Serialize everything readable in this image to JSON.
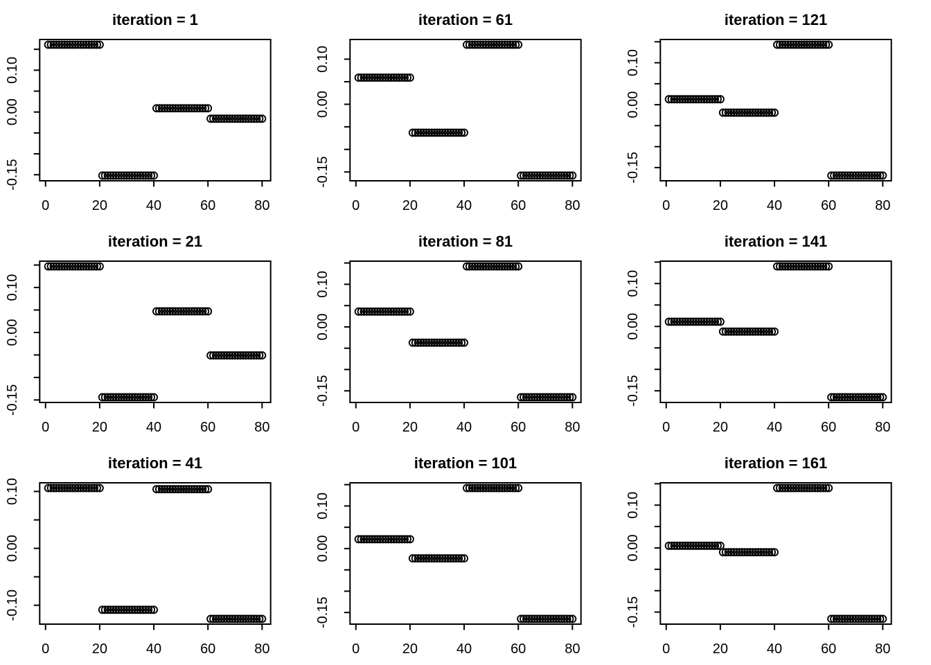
{
  "figure": {
    "background_color": "#ffffff",
    "foreground_color": "#000000",
    "grid": {
      "rows": 3,
      "cols": 3
    },
    "panel_titles": [
      "iteration = 1",
      "iteration = 61",
      "iteration = 121",
      "iteration = 21",
      "iteration = 81",
      "iteration = 141",
      "iteration = 41",
      "iteration = 101",
      "iteration = 161"
    ]
  },
  "chart_data": [
    {
      "type": "scatter",
      "title": "iteration = 1",
      "iteration": 1,
      "marker": "open-circle",
      "points_per_group": 20,
      "groups": [
        {
          "x_range": [
            1,
            20
          ],
          "level": 0.161
        },
        {
          "x_range": [
            21,
            40
          ],
          "level": -0.152
        },
        {
          "x_range": [
            41,
            60
          ],
          "level": 0.009
        },
        {
          "x_range": [
            61,
            80
          ],
          "level": -0.016
        }
      ],
      "xlim": [
        -2.16,
        83.16
      ],
      "ylim": [
        -0.1645,
        0.1735
      ],
      "xticks": [
        0,
        20,
        40,
        60,
        80
      ],
      "xtick_labels": [
        "0",
        "20",
        "40",
        "60",
        "80"
      ],
      "yticks": [
        0.15,
        0.1,
        0.05,
        0,
        -0.05,
        -0.1,
        -0.15
      ],
      "ytick_labels": [
        {
          "v": 0.1,
          "t": "0.10"
        },
        {
          "v": 0,
          "t": "0.00"
        },
        {
          "v": -0.15,
          "t": "-0.15"
        }
      ],
      "grid_lines": false,
      "legend": null
    },
    {
      "type": "scatter",
      "title": "iteration = 61",
      "iteration": 61,
      "marker": "open-circle",
      "points_per_group": 20,
      "groups": [
        {
          "x_range": [
            1,
            20
          ],
          "level": 0.059
        },
        {
          "x_range": [
            21,
            40
          ],
          "level": -0.063
        },
        {
          "x_range": [
            41,
            60
          ],
          "level": 0.132
        },
        {
          "x_range": [
            61,
            80
          ],
          "level": -0.158
        }
      ],
      "xlim": [
        -2.16,
        83.16
      ],
      "ylim": [
        -0.1696,
        0.1436
      ],
      "xticks": [
        0,
        20,
        40,
        60,
        80
      ],
      "xtick_labels": [
        "0",
        "20",
        "40",
        "60",
        "80"
      ],
      "yticks": [
        0.1,
        0.05,
        0,
        -0.05,
        -0.1,
        -0.15
      ],
      "ytick_labels": [
        {
          "v": 0.1,
          "t": "0.10"
        },
        {
          "v": 0,
          "t": "0.00"
        },
        {
          "v": -0.15,
          "t": "-0.15"
        }
      ],
      "grid_lines": false,
      "legend": null
    },
    {
      "type": "scatter",
      "title": "iteration = 121",
      "iteration": 121,
      "marker": "open-circle",
      "points_per_group": 20,
      "groups": [
        {
          "x_range": [
            1,
            20
          ],
          "level": 0.013
        },
        {
          "x_range": [
            21,
            40
          ],
          "level": -0.019
        },
        {
          "x_range": [
            41,
            60
          ],
          "level": 0.143
        },
        {
          "x_range": [
            61,
            80
          ],
          "level": -0.169
        }
      ],
      "xlim": [
        -2.16,
        83.16
      ],
      "ylim": [
        -0.1815,
        0.1555
      ],
      "xticks": [
        0,
        20,
        40,
        60,
        80
      ],
      "xtick_labels": [
        "0",
        "20",
        "40",
        "60",
        "80"
      ],
      "yticks": [
        0.15,
        0.1,
        0.05,
        0,
        -0.05,
        -0.1,
        -0.15
      ],
      "ytick_labels": [
        {
          "v": 0.1,
          "t": "0.10"
        },
        {
          "v": 0,
          "t": "0.00"
        },
        {
          "v": -0.15,
          "t": "-0.15"
        }
      ],
      "grid_lines": false,
      "legend": null
    },
    {
      "type": "scatter",
      "title": "iteration = 21",
      "iteration": 21,
      "marker": "open-circle",
      "points_per_group": 20,
      "groups": [
        {
          "x_range": [
            1,
            20
          ],
          "level": 0.147
        },
        {
          "x_range": [
            21,
            40
          ],
          "level": -0.144
        },
        {
          "x_range": [
            41,
            60
          ],
          "level": 0.047
        },
        {
          "x_range": [
            61,
            80
          ],
          "level": -0.051
        }
      ],
      "xlim": [
        -2.16,
        83.16
      ],
      "ylim": [
        -0.1556,
        0.1586
      ],
      "xticks": [
        0,
        20,
        40,
        60,
        80
      ],
      "xtick_labels": [
        "0",
        "20",
        "40",
        "60",
        "80"
      ],
      "yticks": [
        0.15,
        0.1,
        0.05,
        0,
        -0.05,
        -0.1,
        -0.15
      ],
      "ytick_labels": [
        {
          "v": 0.1,
          "t": "0.10"
        },
        {
          "v": 0,
          "t": "0.00"
        },
        {
          "v": -0.15,
          "t": "-0.15"
        }
      ],
      "grid_lines": false,
      "legend": null
    },
    {
      "type": "scatter",
      "title": "iteration = 81",
      "iteration": 81,
      "marker": "open-circle",
      "points_per_group": 20,
      "groups": [
        {
          "x_range": [
            1,
            20
          ],
          "level": 0.036
        },
        {
          "x_range": [
            21,
            40
          ],
          "level": -0.037
        },
        {
          "x_range": [
            41,
            60
          ],
          "level": 0.142
        },
        {
          "x_range": [
            61,
            80
          ],
          "level": -0.165
        }
      ],
      "xlim": [
        -2.16,
        83.16
      ],
      "ylim": [
        -0.1773,
        0.1543
      ],
      "xticks": [
        0,
        20,
        40,
        60,
        80
      ],
      "xtick_labels": [
        "0",
        "20",
        "40",
        "60",
        "80"
      ],
      "yticks": [
        0.15,
        0.1,
        0.05,
        0,
        -0.05,
        -0.1,
        -0.15
      ],
      "ytick_labels": [
        {
          "v": 0.1,
          "t": "0.10"
        },
        {
          "v": 0,
          "t": "0.00"
        },
        {
          "v": -0.15,
          "t": "-0.15"
        }
      ],
      "grid_lines": false,
      "legend": null
    },
    {
      "type": "scatter",
      "title": "iteration = 141",
      "iteration": 141,
      "marker": "open-circle",
      "points_per_group": 20,
      "groups": [
        {
          "x_range": [
            1,
            20
          ],
          "level": 0.011
        },
        {
          "x_range": [
            21,
            40
          ],
          "level": -0.012
        },
        {
          "x_range": [
            41,
            60
          ],
          "level": 0.14
        },
        {
          "x_range": [
            61,
            80
          ],
          "level": -0.165
        }
      ],
      "xlim": [
        -2.16,
        83.16
      ],
      "ylim": [
        -0.1772,
        0.1522
      ],
      "xticks": [
        0,
        20,
        40,
        60,
        80
      ],
      "xtick_labels": [
        "0",
        "20",
        "40",
        "60",
        "80"
      ],
      "yticks": [
        0.15,
        0.1,
        0.05,
        0,
        -0.05,
        -0.1,
        -0.15
      ],
      "ytick_labels": [
        {
          "v": 0.1,
          "t": "0.10"
        },
        {
          "v": 0,
          "t": "0.00"
        },
        {
          "v": -0.15,
          "t": "-0.15"
        }
      ],
      "grid_lines": false,
      "legend": null
    },
    {
      "type": "scatter",
      "title": "iteration = 41",
      "iteration": 41,
      "marker": "open-circle",
      "points_per_group": 20,
      "groups": [
        {
          "x_range": [
            1,
            20
          ],
          "level": 0.106
        },
        {
          "x_range": [
            21,
            40
          ],
          "level": -0.108
        },
        {
          "x_range": [
            41,
            60
          ],
          "level": 0.104
        },
        {
          "x_range": [
            61,
            80
          ],
          "level": -0.124
        }
      ],
      "xlim": [
        -2.16,
        83.16
      ],
      "ylim": [
        -0.1332,
        0.1152
      ],
      "xticks": [
        0,
        20,
        40,
        60,
        80
      ],
      "xtick_labels": [
        "0",
        "20",
        "40",
        "60",
        "80"
      ],
      "yticks": [
        0.1,
        0.05,
        0,
        -0.05,
        -0.1
      ],
      "ytick_labels": [
        {
          "v": 0.1,
          "t": "0.10"
        },
        {
          "v": 0,
          "t": "0.00"
        },
        {
          "v": -0.1,
          "t": "-0.10"
        }
      ],
      "grid_lines": false,
      "legend": null
    },
    {
      "type": "scatter",
      "title": "iteration = 101",
      "iteration": 101,
      "marker": "open-circle",
      "points_per_group": 20,
      "groups": [
        {
          "x_range": [
            1,
            20
          ],
          "level": 0.022
        },
        {
          "x_range": [
            21,
            40
          ],
          "level": -0.023
        },
        {
          "x_range": [
            41,
            60
          ],
          "level": 0.142
        },
        {
          "x_range": [
            61,
            80
          ],
          "level": -0.165
        }
      ],
      "xlim": [
        -2.16,
        83.16
      ],
      "ylim": [
        -0.1773,
        0.1543
      ],
      "xticks": [
        0,
        20,
        40,
        60,
        80
      ],
      "xtick_labels": [
        "0",
        "20",
        "40",
        "60",
        "80"
      ],
      "yticks": [
        0.15,
        0.1,
        0.05,
        0,
        -0.05,
        -0.1,
        -0.15
      ],
      "ytick_labels": [
        {
          "v": 0.1,
          "t": "0.10"
        },
        {
          "v": 0,
          "t": "0.00"
        },
        {
          "v": -0.15,
          "t": "-0.15"
        }
      ],
      "grid_lines": false,
      "legend": null
    },
    {
      "type": "scatter",
      "title": "iteration = 161",
      "iteration": 161,
      "marker": "open-circle",
      "points_per_group": 20,
      "groups": [
        {
          "x_range": [
            1,
            20
          ],
          "level": 0.005
        },
        {
          "x_range": [
            21,
            40
          ],
          "level": -0.01
        },
        {
          "x_range": [
            41,
            60
          ],
          "level": 0.14
        },
        {
          "x_range": [
            61,
            80
          ],
          "level": -0.166
        }
      ],
      "xlim": [
        -2.16,
        83.16
      ],
      "ylim": [
        -0.1782,
        0.1522
      ],
      "xticks": [
        0,
        20,
        40,
        60,
        80
      ],
      "xtick_labels": [
        "0",
        "20",
        "40",
        "60",
        "80"
      ],
      "yticks": [
        0.15,
        0.1,
        0.05,
        0,
        -0.05,
        -0.1,
        -0.15
      ],
      "ytick_labels": [
        {
          "v": 0.1,
          "t": "0.10"
        },
        {
          "v": 0,
          "t": "0.00"
        },
        {
          "v": -0.15,
          "t": "-0.15"
        }
      ],
      "grid_lines": false,
      "legend": null
    }
  ]
}
